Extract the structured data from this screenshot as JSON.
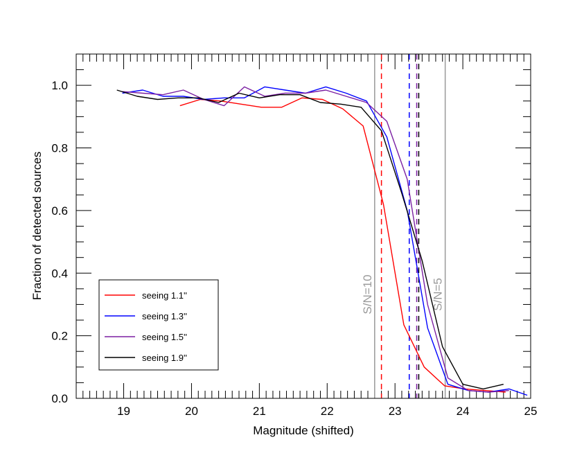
{
  "chart_data": {
    "type": "line",
    "title": "",
    "xlabel": "Magnitude (shifted)",
    "ylabel": "Fraction of detected sources",
    "xlim": [
      18.3,
      25.0
    ],
    "ylim": [
      0.0,
      1.1
    ],
    "xticks": [
      19,
      20,
      21,
      22,
      23,
      24,
      25
    ],
    "xtick_labels": [
      "19",
      "20",
      "21",
      "22",
      "23",
      "24",
      "25"
    ],
    "yticks": [
      0.0,
      0.2,
      0.4,
      0.6,
      0.8,
      1.0
    ],
    "ytick_labels": [
      "0.0",
      "0.2",
      "0.4",
      "0.6",
      "0.8",
      "1.0"
    ],
    "legend_position": "bottom-left",
    "series": [
      {
        "name": "seeing 1.1''",
        "color": "#ff0000",
        "x": [
          19.83,
          20.13,
          20.43,
          20.73,
          21.03,
          21.33,
          21.63,
          21.93,
          22.23,
          22.53,
          22.83,
          23.13,
          23.43,
          23.73,
          24.03,
          24.33,
          24.63
        ],
        "y": [
          0.935,
          0.955,
          0.95,
          0.94,
          0.93,
          0.93,
          0.96,
          0.955,
          0.925,
          0.87,
          0.62,
          0.235,
          0.1,
          0.04,
          0.03,
          0.025,
          0.02
        ]
      },
      {
        "name": "seeing 1.3''",
        "color": "#0000ff",
        "x": [
          18.98,
          19.28,
          19.58,
          19.88,
          20.18,
          20.48,
          20.78,
          21.08,
          21.38,
          21.68,
          21.98,
          22.28,
          22.58,
          22.88,
          23.18,
          23.48,
          23.78,
          24.08,
          24.38,
          24.68,
          24.95
        ],
        "y": [
          0.975,
          0.985,
          0.965,
          0.965,
          0.955,
          0.96,
          0.96,
          0.995,
          0.985,
          0.975,
          0.995,
          0.975,
          0.95,
          0.835,
          0.6,
          0.225,
          0.045,
          0.025,
          0.02,
          0.03,
          0.01
        ]
      },
      {
        "name": "seeing 1.5''",
        "color": "#7b1fa2",
        "x": [
          18.98,
          19.28,
          19.58,
          19.88,
          20.18,
          20.48,
          20.78,
          21.08,
          21.38,
          21.68,
          21.98,
          22.28,
          22.58,
          22.88,
          23.18,
          23.48,
          23.78,
          24.08,
          24.38,
          24.68
        ],
        "y": [
          0.98,
          0.975,
          0.97,
          0.985,
          0.955,
          0.935,
          0.995,
          0.965,
          0.975,
          0.975,
          0.985,
          0.965,
          0.945,
          0.885,
          0.7,
          0.3,
          0.065,
          0.025,
          0.02,
          0.025
        ]
      },
      {
        "name": "seeing 1.9''",
        "color": "#000000",
        "x": [
          18.9,
          19.2,
          19.5,
          19.8,
          20.1,
          20.4,
          20.7,
          21.0,
          21.3,
          21.6,
          21.9,
          22.2,
          22.5,
          22.8,
          23.1,
          23.4,
          23.7,
          24.0,
          24.3,
          24.6
        ],
        "y": [
          0.985,
          0.965,
          0.955,
          0.96,
          0.96,
          0.945,
          0.975,
          0.96,
          0.97,
          0.97,
          0.945,
          0.94,
          0.93,
          0.855,
          0.655,
          0.44,
          0.165,
          0.045,
          0.03,
          0.045
        ]
      }
    ],
    "vertical_lines": [
      {
        "x": 22.7,
        "style": "solid",
        "color": "#999999",
        "label": "S/N=10"
      },
      {
        "x": 23.74,
        "style": "solid",
        "color": "#999999",
        "label": "S/N=5"
      },
      {
        "x": 22.8,
        "style": "dashed",
        "color": "#ff0000"
      },
      {
        "x": 23.21,
        "style": "dashed",
        "color": "#0000ff"
      },
      {
        "x": 23.32,
        "style": "dashed",
        "color": "#7b1fa2"
      },
      {
        "x": 23.35,
        "style": "dashed",
        "color": "#000000"
      }
    ]
  }
}
